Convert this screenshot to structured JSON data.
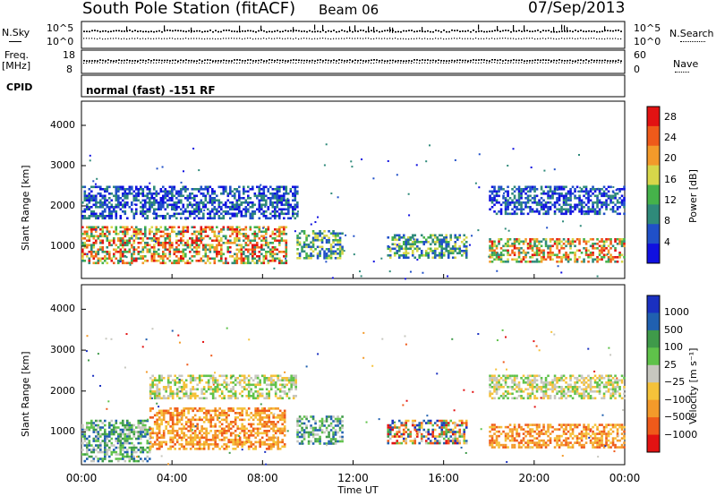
{
  "header": {
    "station": "South Pole Station (fitACF)",
    "beam": "Beam 06",
    "date": "07/Sep/2013"
  },
  "top_panels": {
    "nsky_label": "N.Sky",
    "nsearch_label": "N.Search",
    "freq_label": "Freq.",
    "freq_unit": "[MHz]",
    "nave_label": "Nave",
    "cpid_label": "CPID",
    "cpid_value": "normal (fast) -151 RF",
    "noise_ticks_left": [
      "10^5",
      "10^0"
    ],
    "noise_ticks_right": [
      "10^5",
      "10^0"
    ],
    "freq_ticks": [
      "18",
      "8"
    ],
    "nave_ticks": [
      "60",
      "0"
    ]
  },
  "colors": {
    "power_scale": [
      "#1010e0",
      "#2050c8",
      "#2f8a7a",
      "#45b24a",
      "#d7d74a",
      "#f39a2a",
      "#ef5a1a",
      "#e21212"
    ],
    "velocity_scale": [
      "#e21212",
      "#ef5a1a",
      "#f39a2a",
      "#f5c23a",
      "#c7c7bf",
      "#5fc24a",
      "#3f9a4a",
      "#2060b0",
      "#1a30c0"
    ]
  },
  "chart_data": [
    {
      "type": "heatmap",
      "name": "power",
      "xlabel": "Time UT",
      "ylabel": "Slant Range [km]",
      "x_ticks": [
        "00:00",
        "04:00",
        "08:00",
        "12:00",
        "16:00",
        "20:00",
        "00:00"
      ],
      "xlim_hours": [
        0,
        24
      ],
      "ylim": [
        200,
        4600
      ],
      "y_ticks": [
        1000,
        2000,
        3000,
        4000
      ],
      "colorbar": {
        "label": "Power [dB]",
        "ticks": [
          4,
          8,
          12,
          16,
          20,
          24,
          28
        ],
        "range": [
          0,
          30
        ]
      },
      "regions": [
        {
          "t0": 0.0,
          "t1": 9.0,
          "r0": 600,
          "r1": 1500,
          "level": "high"
        },
        {
          "t0": 0.0,
          "t1": 9.5,
          "r0": 1700,
          "r1": 2500,
          "level": "low"
        },
        {
          "t0": 9.5,
          "t1": 11.5,
          "r0": 700,
          "r1": 1400,
          "level": "mid"
        },
        {
          "t0": 13.5,
          "t1": 17.0,
          "r0": 700,
          "r1": 1300,
          "level": "mid"
        },
        {
          "t0": 18.0,
          "t1": 24.0,
          "r0": 600,
          "r1": 1200,
          "level": "high"
        },
        {
          "t0": 18.0,
          "t1": 24.0,
          "r0": 1800,
          "r1": 2500,
          "level": "low"
        }
      ]
    },
    {
      "type": "heatmap",
      "name": "velocity",
      "xlabel": "Time UT",
      "ylabel": "Slant Range [km]",
      "x_ticks": [
        "00:00",
        "04:00",
        "08:00",
        "12:00",
        "16:00",
        "20:00",
        "00:00"
      ],
      "xlim_hours": [
        0,
        24
      ],
      "ylim": [
        200,
        4600
      ],
      "y_ticks": [
        1000,
        2000,
        3000,
        4000
      ],
      "colorbar": {
        "label": "Velocity [m s⁻¹]",
        "ticks": [
          "1000",
          "500",
          "100",
          "25",
          "−25",
          "−100",
          "−500",
          "−1000"
        ]
      },
      "regions": [
        {
          "t0": 0.0,
          "t1": 3.0,
          "r0": 300,
          "r1": 1300,
          "level": "green"
        },
        {
          "t0": 3.0,
          "t1": 9.0,
          "r0": 600,
          "r1": 1600,
          "level": "orange"
        },
        {
          "t0": 3.0,
          "t1": 9.5,
          "r0": 1800,
          "r1": 2400,
          "level": "gray"
        },
        {
          "t0": 9.5,
          "t1": 11.5,
          "r0": 700,
          "r1": 1400,
          "level": "green"
        },
        {
          "t0": 13.5,
          "t1": 17.0,
          "r0": 700,
          "r1": 1300,
          "level": "mixed"
        },
        {
          "t0": 18.0,
          "t1": 24.0,
          "r0": 600,
          "r1": 1200,
          "level": "orange"
        },
        {
          "t0": 18.0,
          "t1": 24.0,
          "r0": 1800,
          "r1": 2400,
          "level": "gray"
        }
      ]
    }
  ]
}
